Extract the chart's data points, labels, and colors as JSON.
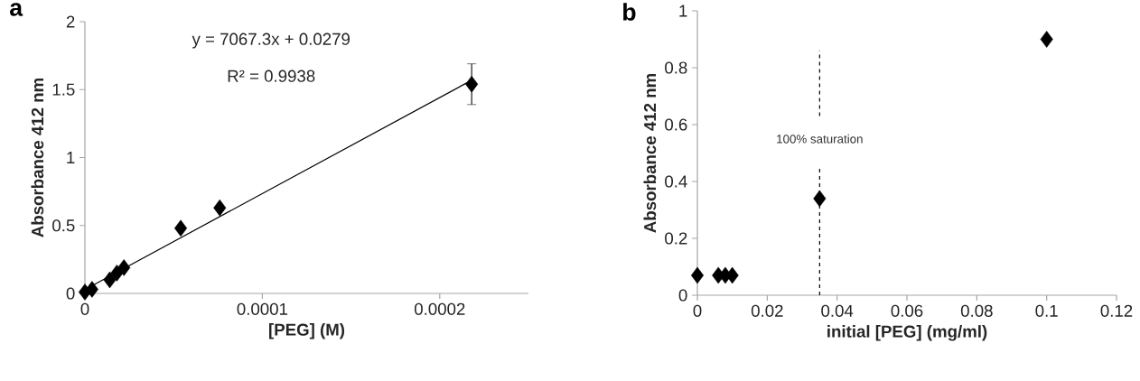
{
  "chart_data": [
    {
      "type": "scatter",
      "title": "a",
      "xlabel": "[PEG] (M)",
      "ylabel": "Absorbance 412 nm",
      "xlim": [
        0,
        0.00025
      ],
      "xticks": [
        0,
        0.0001,
        0.0002
      ],
      "ylim": [
        0,
        2
      ],
      "yticks": [
        0,
        0.5,
        1,
        1.5,
        2
      ],
      "annotations": [
        "y = 7067.3x + 0.0279",
        "R² = 0.9938"
      ],
      "series": [
        {
          "marker": "diamond",
          "color": "#000000",
          "x": [
            0,
            4e-06,
            1.4e-05,
            1.8e-05,
            2.2e-05,
            5.4e-05,
            7.6e-05,
            0.000218
          ],
          "values": [
            0.01,
            0.03,
            0.1,
            0.15,
            0.19,
            0.48,
            0.63,
            1.54
          ],
          "errors": [
            null,
            null,
            null,
            null,
            null,
            null,
            null,
            0.15
          ]
        },
        {
          "type": "line",
          "color": "#000000",
          "x": [
            0,
            0.000218
          ],
          "values": [
            0.028,
            1.569
          ]
        }
      ]
    },
    {
      "type": "scatter",
      "title": "b",
      "xlabel": "initial [PEG] (mg/ml)",
      "ylabel": "Absorbance 412 nm",
      "xlim": [
        0,
        0.12
      ],
      "xticks": [
        0,
        0.02,
        0.04,
        0.06,
        0.08,
        0.1,
        0.12
      ],
      "ylim": [
        0,
        1
      ],
      "yticks": [
        0,
        0.2,
        0.4,
        0.6,
        0.8,
        1
      ],
      "ref_lines": [
        {
          "axis": "x",
          "value": 0.035,
          "label": "100% saturation",
          "color": "#000000",
          "line_style": "dashed"
        }
      ],
      "series": [
        {
          "marker": "diamond",
          "color": "#000000",
          "x": [
            0,
            0.006,
            0.008,
            0.01,
            0.035,
            0.1
          ],
          "values": [
            0.07,
            0.07,
            0.07,
            0.07,
            0.34,
            0.9
          ]
        }
      ]
    }
  ]
}
